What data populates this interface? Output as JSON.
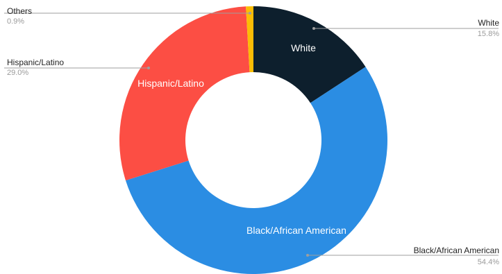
{
  "chart_data": {
    "type": "pie",
    "donut": true,
    "legend": "none",
    "title": "",
    "slices": [
      {
        "label": "White",
        "percent_label": "15.8%",
        "value": 15.8,
        "color": "#0d1f2d",
        "inner_label": "White"
      },
      {
        "label": "Black/African American",
        "percent_label": "54.4%",
        "value": 54.4,
        "color": "#2b8de3",
        "inner_label": "Black/African American"
      },
      {
        "label": "Hispanic/Latino",
        "percent_label": "29.0%",
        "value": 29.0,
        "color": "#fc4e44",
        "inner_label": "Hispanic/Latino"
      },
      {
        "label": "Others",
        "percent_label": "0.9%",
        "value": 0.9,
        "color": "#fbbc05",
        "inner_label": ""
      }
    ]
  }
}
